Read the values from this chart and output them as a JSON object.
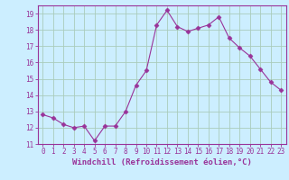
{
  "x": [
    0,
    1,
    2,
    3,
    4,
    5,
    6,
    7,
    8,
    9,
    10,
    11,
    12,
    13,
    14,
    15,
    16,
    17,
    18,
    19,
    20,
    21,
    22,
    23
  ],
  "y": [
    12.8,
    12.6,
    12.2,
    12.0,
    12.1,
    11.2,
    12.1,
    12.1,
    13.0,
    14.6,
    15.5,
    18.3,
    19.2,
    18.2,
    17.9,
    18.1,
    18.3,
    18.8,
    17.5,
    16.9,
    16.4,
    15.6,
    14.8,
    14.3
  ],
  "line_color": "#993399",
  "marker": "D",
  "marker_size": 2.5,
  "xlim": [
    -0.5,
    23.5
  ],
  "ylim": [
    11,
    19.5
  ],
  "yticks": [
    11,
    12,
    13,
    14,
    15,
    16,
    17,
    18,
    19
  ],
  "xticks": [
    0,
    1,
    2,
    3,
    4,
    5,
    6,
    7,
    8,
    9,
    10,
    11,
    12,
    13,
    14,
    15,
    16,
    17,
    18,
    19,
    20,
    21,
    22,
    23
  ],
  "xlabel": "Windchill (Refroidissement éolien,°C)",
  "bg_color": "#cceeff",
  "grid_color": "#aaccbb",
  "tick_label_color": "#993399",
  "axis_label_color": "#993399",
  "tick_fontsize": 5.5,
  "xlabel_fontsize": 6.5,
  "linewidth": 0.8
}
